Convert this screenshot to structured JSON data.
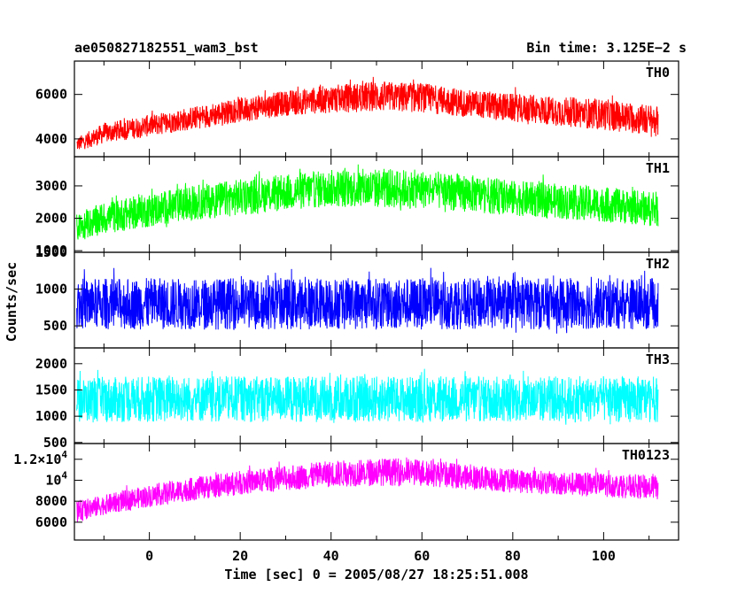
{
  "header": {
    "title": "ae050827182551_wam3_bst",
    "bin_time": "Bin time: 3.125E−2 s"
  },
  "axes": {
    "ylabel": "Counts/sec",
    "xlabel": "Time [sec] 0 = 2005/08/27 18:25:51.008",
    "x_ticks": [
      "0",
      "20",
      "40",
      "60",
      "80",
      "100"
    ]
  },
  "chart_data": [
    {
      "type": "line",
      "name": "TH0",
      "color": "#ff0000",
      "xlim": [
        -16.5,
        116.5
      ],
      "ylim": [
        3200,
        7500
      ],
      "yticks": [
        4000,
        6000
      ],
      "ytick_labels": [
        "4000",
        "6000"
      ],
      "x": [
        -16,
        -10,
        0,
        10,
        20,
        30,
        40,
        50,
        60,
        70,
        80,
        90,
        100,
        112
      ],
      "y_low": [
        3300,
        3600,
        3900,
        4200,
        4500,
        4800,
        4900,
        4900,
        4900,
        4700,
        4500,
        4300,
        4100,
        3800
      ],
      "y_high": [
        4200,
        4900,
        5300,
        5700,
        6100,
        6400,
        6700,
        6900,
        6800,
        6500,
        6300,
        6200,
        6100,
        5800
      ]
    },
    {
      "type": "line",
      "name": "TH1",
      "color": "#00ff00",
      "xlim": [
        -16.5,
        116.5
      ],
      "ylim": [
        950,
        3900
      ],
      "yticks": [
        1000,
        2000,
        3000
      ],
      "ytick_labels": [
        "1000",
        "2000",
        "3000"
      ],
      "x": [
        -16,
        -10,
        0,
        10,
        20,
        30,
        40,
        50,
        60,
        70,
        80,
        90,
        100,
        112
      ],
      "y_low": [
        1100,
        1300,
        1500,
        1700,
        1850,
        2000,
        2100,
        2050,
        2050,
        1950,
        1850,
        1750,
        1650,
        1500
      ],
      "y_high": [
        2300,
        2700,
        3000,
        3250,
        3450,
        3600,
        3750,
        3800,
        3750,
        3600,
        3400,
        3300,
        3200,
        3050
      ]
    },
    {
      "type": "line",
      "name": "TH2",
      "color": "#0000ff",
      "xlim": [
        -16.5,
        116.5
      ],
      "ylim": [
        200,
        1500
      ],
      "yticks": [
        500,
        1000,
        1500
      ],
      "ytick_labels": [
        "500",
        "1000",
        "1500"
      ],
      "x": [
        -16,
        0,
        20,
        40,
        60,
        80,
        100,
        112
      ],
      "y_low": [
        300,
        300,
        300,
        300,
        300,
        300,
        300,
        300
      ],
      "y_high": [
        1300,
        1300,
        1300,
        1300,
        1300,
        1300,
        1300,
        1300
      ]
    },
    {
      "type": "line",
      "name": "TH3",
      "color": "#00ffff",
      "xlim": [
        -16.5,
        116.5
      ],
      "ylim": [
        480,
        2300
      ],
      "yticks": [
        500,
        1000,
        1500,
        2000
      ],
      "ytick_labels": [
        "500",
        "1000",
        "1500",
        "2000"
      ],
      "x": [
        -16,
        0,
        20,
        40,
        60,
        80,
        100,
        112
      ],
      "y_low": [
        700,
        700,
        700,
        700,
        700,
        700,
        700,
        700
      ],
      "y_high": [
        1900,
        1950,
        1950,
        1950,
        1950,
        1950,
        1950,
        1950
      ]
    },
    {
      "type": "line",
      "name": "TH0123",
      "color": "#ff00ff",
      "xlim": [
        -16.5,
        116.5
      ],
      "ylim": [
        4300,
        13500
      ],
      "yticks": [
        6000,
        8000,
        10000,
        12000
      ],
      "ytick_labels": [
        "6000",
        "8000",
        "10^4",
        "1.2×10^4"
      ],
      "x": [
        -16,
        -10,
        0,
        10,
        20,
        30,
        40,
        50,
        60,
        70,
        80,
        90,
        100,
        112
      ],
      "y_low": [
        5500,
        6300,
        7000,
        7600,
        8100,
        8500,
        8800,
        8900,
        8900,
        8600,
        8300,
        8100,
        7900,
        7600
      ],
      "y_high": [
        8500,
        9000,
        10000,
        10800,
        11400,
        11900,
        12400,
        12700,
        12600,
        12000,
        11600,
        11300,
        11200,
        11000
      ]
    }
  ]
}
